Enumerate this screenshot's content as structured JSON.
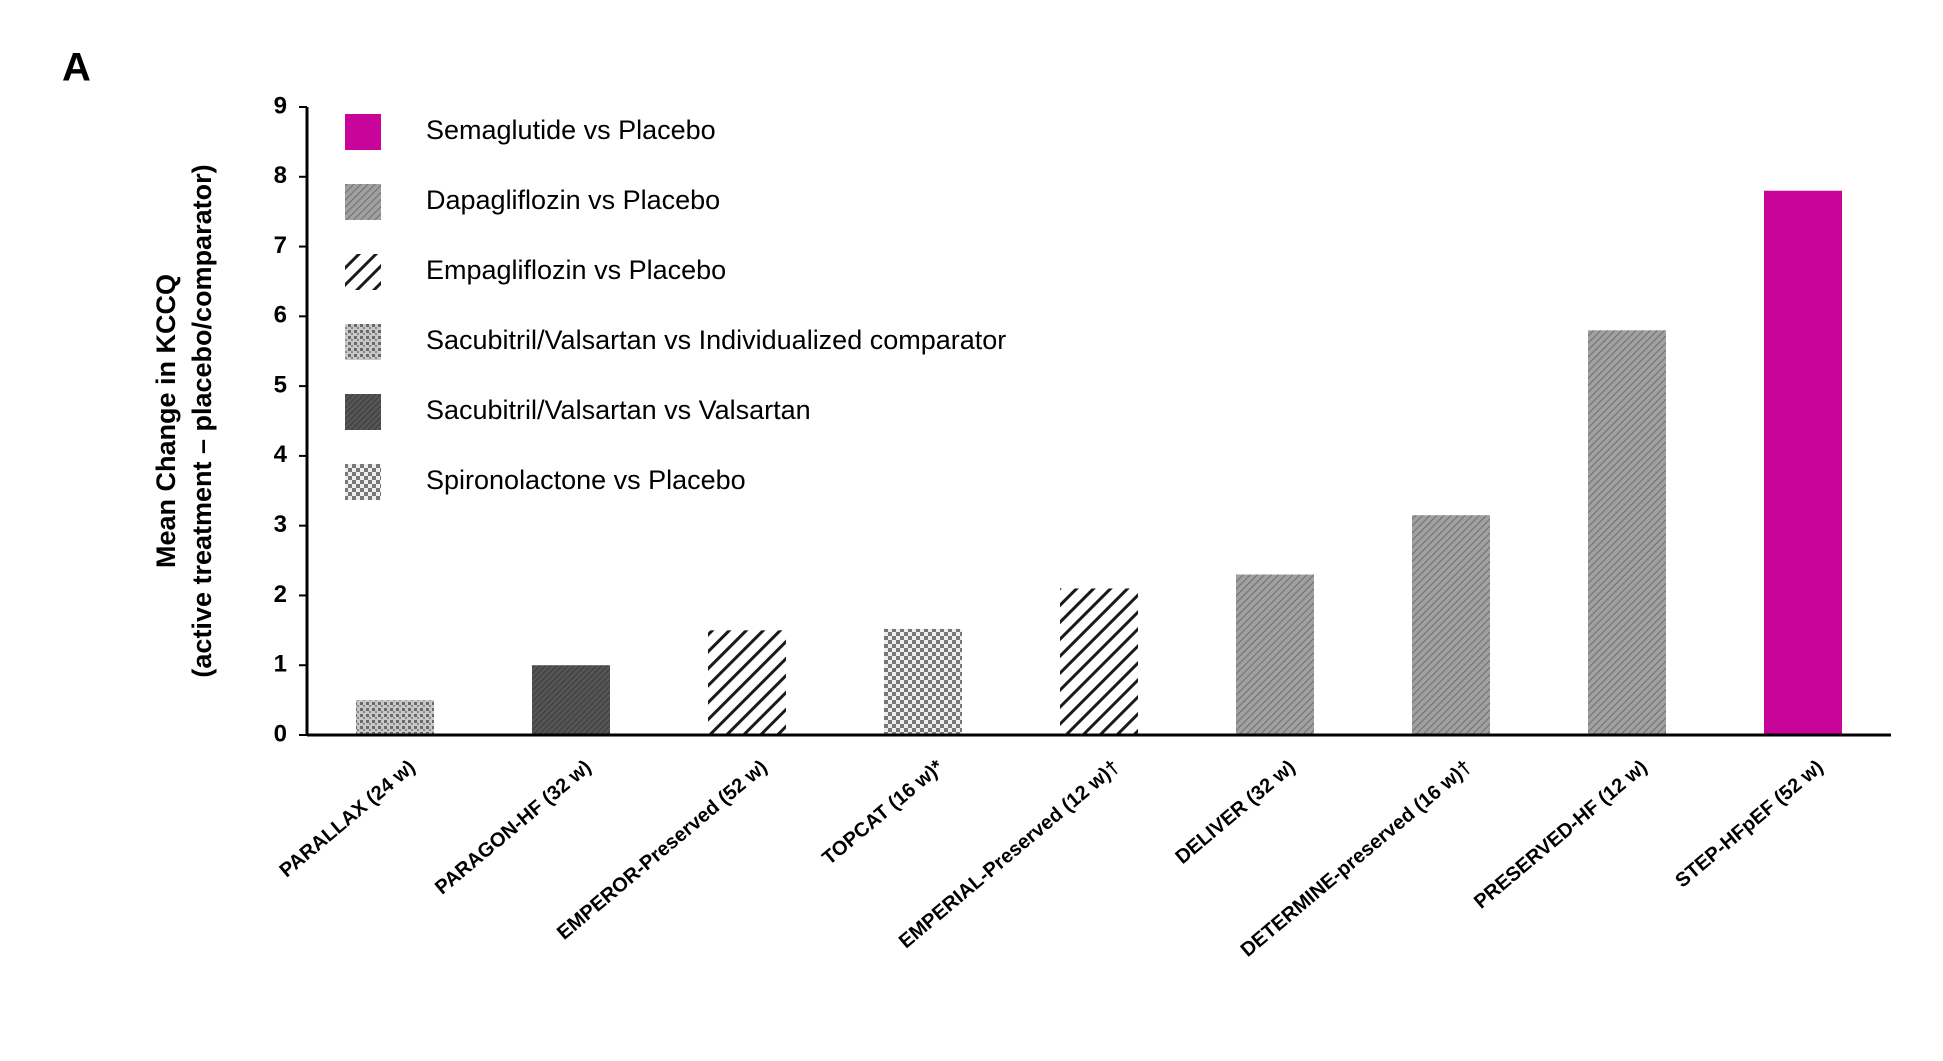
{
  "chart_data": {
    "type": "bar",
    "panel_label": "A",
    "y_label": [
      "Mean Change in KCCQ",
      "(active treatment – placebo/comparator)"
    ],
    "categories": [
      "PARALLAX (24 w)",
      "PARAGON-HF (32 w)",
      "EMPEROR-Preserved (52 w)",
      "TOPCAT (16 w)*",
      "EMPERIAL-Preserved (12 w)†",
      "DELIVER (32 w)",
      "DETERMINE-preserved (16 w)†",
      "PRESERVED-HF (12 w)",
      "STEP-HFpEF (52 w)"
    ],
    "series": [
      {
        "name": "Semaglutide vs Placebo",
        "color": "#c8049a",
        "pattern": "solid",
        "values": [
          null,
          null,
          null,
          null,
          null,
          null,
          null,
          null,
          7.8
        ]
      },
      {
        "name": "Dapagliflozin vs Placebo",
        "color": "#8a8a8a",
        "pattern": "fine-hatch",
        "values": [
          null,
          null,
          null,
          null,
          null,
          2.3,
          3.15,
          5.8,
          null
        ]
      },
      {
        "name": "Empagliflozin vs Placebo",
        "color": "#1a1a1a",
        "pattern": "stripes",
        "values": [
          null,
          null,
          1.5,
          null,
          2.1,
          null,
          null,
          null,
          null
        ]
      },
      {
        "name": "Sacubitril/Valsartan vs Individualized comparator",
        "color": "#9a9a9a",
        "pattern": "speckle",
        "values": [
          0.5,
          null,
          null,
          null,
          null,
          null,
          null,
          null,
          null
        ]
      },
      {
        "name": "Sacubitril/Valsartan vs Valsartan",
        "color": "#4a4a4a",
        "pattern": "dark-hatch",
        "values": [
          null,
          1.0,
          null,
          null,
          null,
          null,
          null,
          null,
          null
        ]
      },
      {
        "name": "Spironolactone vs Placebo",
        "color": "#8a8a8a",
        "pattern": "checker",
        "values": [
          null,
          null,
          null,
          1.52,
          null,
          null,
          null,
          null,
          null
        ]
      }
    ],
    "ylim": [
      0,
      9
    ],
    "yticks": [
      0,
      1,
      2,
      3,
      4,
      5,
      6,
      7,
      8,
      9
    ],
    "grid": false,
    "legend": "top-left"
  }
}
